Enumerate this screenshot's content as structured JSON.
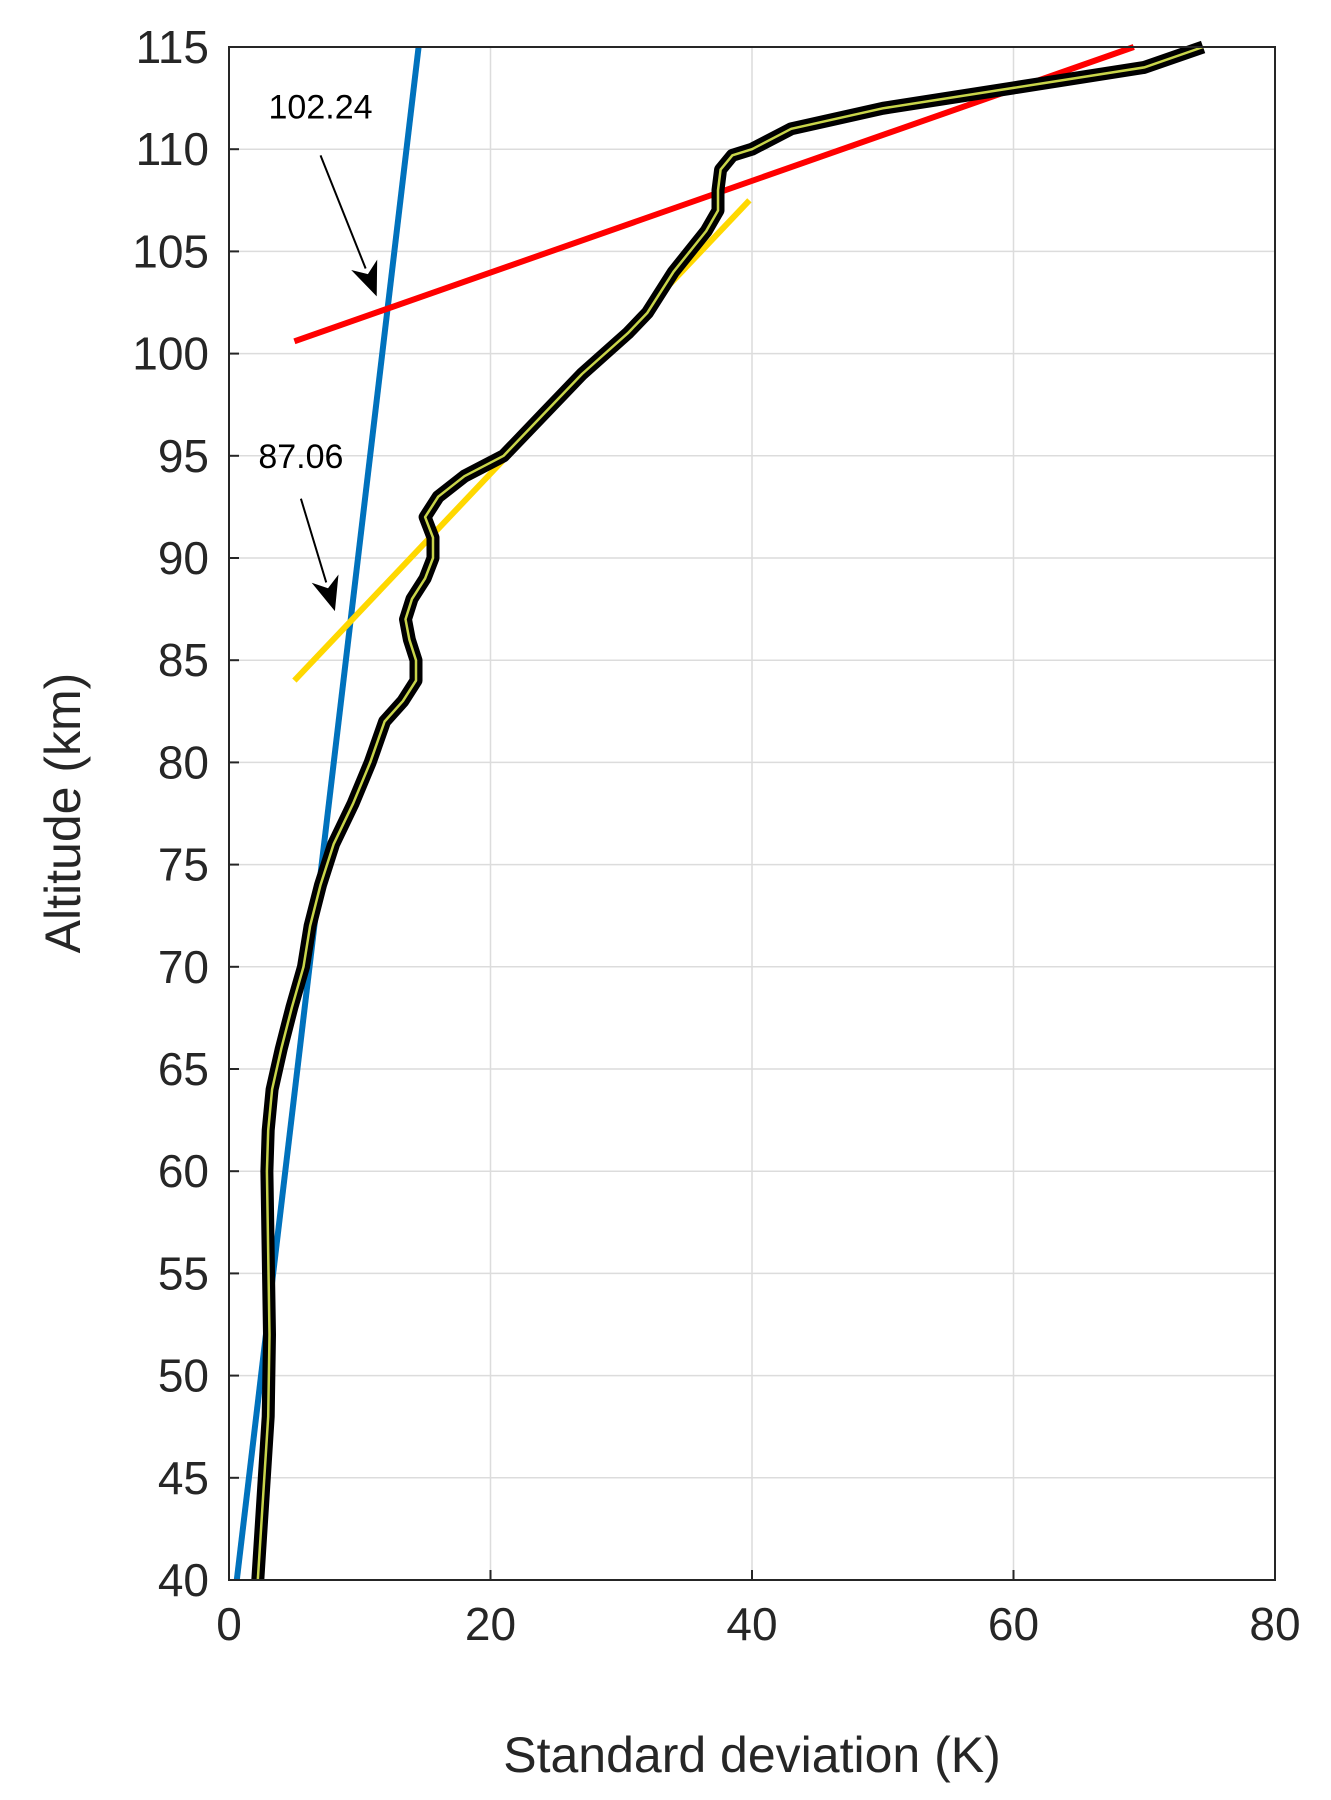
{
  "chart_data": {
    "type": "line",
    "xlabel": "Standard deviation (K)",
    "ylabel": "Altitude (km)",
    "xlim": [
      0,
      80
    ],
    "ylim": [
      40,
      115
    ],
    "xticks": [
      0,
      20,
      40,
      60,
      80
    ],
    "yticks": [
      40,
      45,
      50,
      55,
      60,
      65,
      70,
      75,
      80,
      85,
      90,
      95,
      100,
      105,
      110,
      115
    ],
    "grid": true,
    "legend": "none",
    "series": [
      {
        "style": "profile",
        "color": "#000000",
        "inner_color": "#c8d44a",
        "x": [
          2.2,
          2.6,
          3.0,
          3.1,
          3.0,
          2.9,
          3.0,
          3.3,
          4.0,
          4.8,
          5.7,
          6.2,
          7.0,
          8.0,
          9.5,
          10.8,
          11.9,
          13.3,
          14.3,
          14.3,
          13.8,
          13.5,
          14.0,
          15.0,
          15.6,
          15.6,
          15.0,
          16.0,
          18.0,
          21.0,
          24.0,
          27.0,
          30.5,
          32.0,
          34.0,
          36.5,
          37.4,
          37.4,
          37.6,
          38.5,
          40.0,
          43.0,
          50.0,
          60.0,
          70.0,
          74.5
        ],
        "y": [
          40,
          44,
          48,
          52,
          56,
          60,
          62,
          64,
          66,
          68,
          70,
          72,
          74,
          76,
          78,
          80,
          82,
          83,
          84,
          85,
          86,
          87,
          88,
          89,
          90,
          91,
          92,
          93,
          94,
          95,
          97,
          99,
          101,
          102,
          104,
          106,
          107,
          108,
          109,
          109.7,
          110,
          111,
          112,
          113,
          114,
          115
        ]
      },
      {
        "style": "fit",
        "color": "#0072bd",
        "x": [
          0.6,
          14.5
        ],
        "y": [
          40,
          115
        ]
      },
      {
        "style": "fit",
        "color": "#ffd800",
        "x": [
          5.0,
          39.8
        ],
        "y": [
          84,
          107.5
        ]
      },
      {
        "style": "fit",
        "color": "#ff0000",
        "x": [
          5.0,
          69.2
        ],
        "y": [
          100.6,
          115
        ]
      }
    ],
    "annotations": [
      {
        "text": "102.24",
        "text_x": 7.0,
        "text_y": 111.5,
        "arrow_from_x": 7.0,
        "arrow_from_y": 109.7,
        "arrow_to_x": 11.3,
        "arrow_to_y": 102.8
      },
      {
        "text": "87.06",
        "text_x": 5.5,
        "text_y": 94.4,
        "arrow_from_x": 5.5,
        "arrow_from_y": 92.9,
        "arrow_to_x": 8.1,
        "arrow_to_y": 87.4
      }
    ]
  }
}
